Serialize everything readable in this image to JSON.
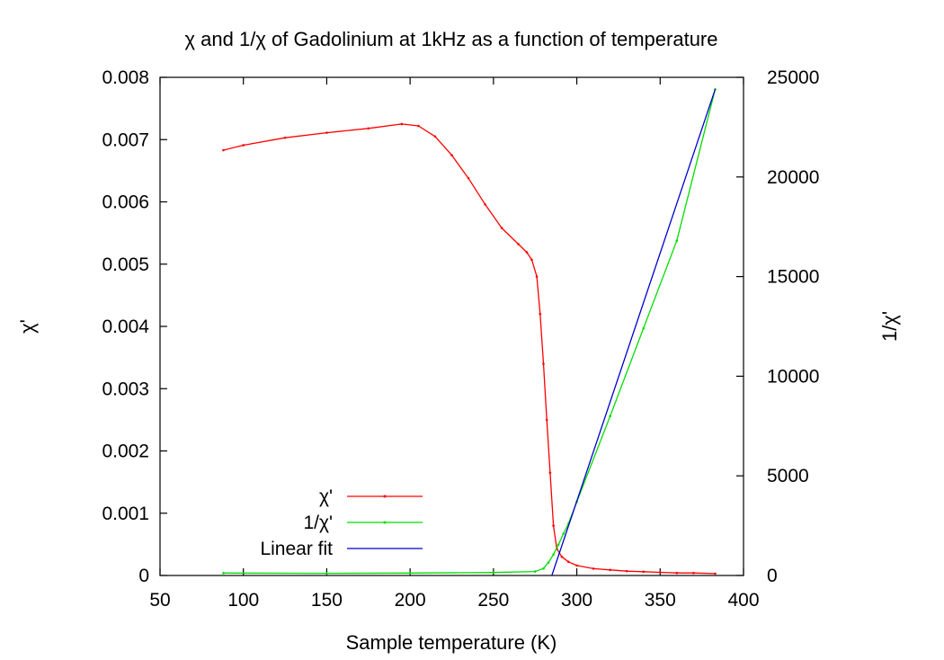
{
  "chart_data": {
    "type": "line",
    "title": "χ and 1/χ of Gadolinium at 1kHz as a function of temperature",
    "xlabel": "Sample temperature (K)",
    "ylabel": "χ'",
    "y2label": "1/χ'",
    "xlim": [
      50,
      400
    ],
    "ylim": [
      0,
      0.008
    ],
    "y2lim": [
      0,
      25000
    ],
    "x_ticks": [
      "50",
      "100",
      "150",
      "200",
      "250",
      "300",
      "350",
      "400"
    ],
    "y_ticks": [
      "0",
      "0.001",
      "0.002",
      "0.003",
      "0.004",
      "0.005",
      "0.006",
      "0.007",
      "0.008"
    ],
    "y2_ticks": [
      "0",
      "5000",
      "10000",
      "15000",
      "20000",
      "25000"
    ],
    "grid": false,
    "legend_position": "bottom-left",
    "series": [
      {
        "name": "χ'",
        "axis": "left",
        "color": "#ff0000",
        "x": [
          88,
          100,
          125,
          150,
          175,
          195,
          205,
          215,
          225,
          235,
          245,
          255,
          265,
          270,
          273,
          276,
          278,
          280,
          282,
          284,
          286,
          288,
          291,
          295,
          300,
          310,
          320,
          330,
          340,
          350,
          360,
          370,
          383
        ],
        "y": [
          0.00683,
          0.00691,
          0.00703,
          0.00711,
          0.00718,
          0.00725,
          0.00722,
          0.00705,
          0.00675,
          0.00638,
          0.00596,
          0.00558,
          0.00532,
          0.00519,
          0.00507,
          0.0048,
          0.0042,
          0.0034,
          0.0025,
          0.00165,
          0.0008,
          0.00043,
          0.0003,
          0.00022,
          0.00016,
          0.00011,
          9e-05,
          7e-05,
          6e-05,
          5e-05,
          4e-05,
          4e-05,
          3e-05
        ]
      },
      {
        "name": "1/χ'",
        "axis": "right",
        "color": "#00dd00",
        "x": [
          88,
          150,
          200,
          250,
          275,
          280,
          283,
          286,
          289,
          292,
          295,
          300,
          320,
          340,
          360,
          383
        ],
        "y": [
          120,
          110,
          120,
          150,
          200,
          350,
          650,
          1050,
          1550,
          2100,
          2600,
          3700,
          8000,
          12400,
          16800,
          24400
        ]
      },
      {
        "name": "Linear fit",
        "axis": "right",
        "color": "#0000cc",
        "x": [
          285,
          383
        ],
        "y": [
          0,
          24400
        ]
      }
    ]
  }
}
